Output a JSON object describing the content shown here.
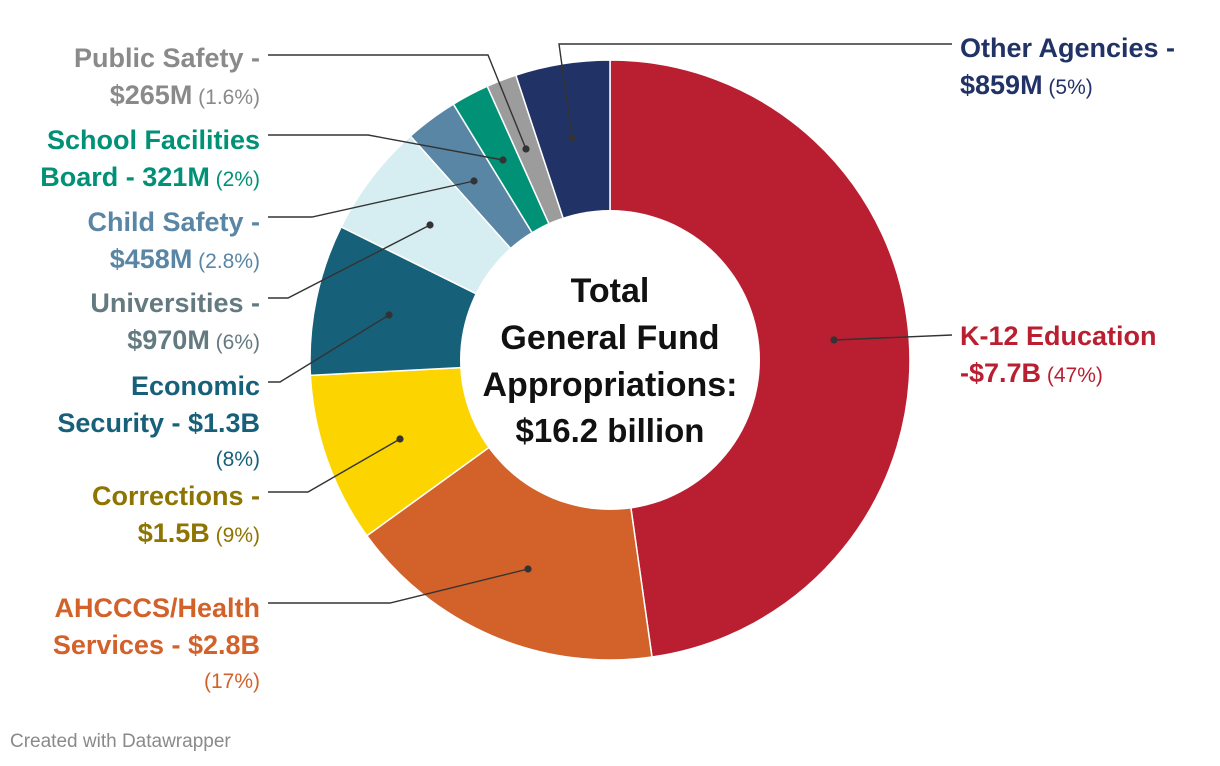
{
  "chart_data": {
    "type": "pie",
    "donut": true,
    "center_text": [
      "Total",
      "General Fund",
      "Appropriations:",
      "$16.2 billion"
    ],
    "slices": [
      {
        "name": "K-12 Education",
        "amount": "-$7.7B",
        "pct_text": "(47%)",
        "value": 47,
        "color": "#b91f31"
      },
      {
        "name": "AHCCCS/Health Services",
        "amount": "$2.8B",
        "pct_text": "(17%)",
        "value": 17,
        "color": "#d2612a"
      },
      {
        "name": "Corrections",
        "amount": "$1.5B",
        "pct_text": "(9%)",
        "value": 9,
        "color": "#fcd500"
      },
      {
        "name": "Economic Security",
        "amount": "$1.3B",
        "pct_text": "(8%)",
        "value": 8,
        "color": "#17607a"
      },
      {
        "name": "Universities",
        "amount": "$970M",
        "pct_text": "(6%)",
        "value": 6,
        "color": "#d6edf1"
      },
      {
        "name": "Child Safety",
        "amount": "$458M",
        "pct_text": "(2.8%)",
        "value": 2.8,
        "color": "#5a86a5"
      },
      {
        "name": "School Facilities Board",
        "amount": "321M",
        "pct_text": "(2%)",
        "value": 2,
        "color": "#019176"
      },
      {
        "name": "Public Safety",
        "amount": "$265M",
        "pct_text": "(1.6%)",
        "value": 1.6,
        "color": "#9c9c9c"
      },
      {
        "name": "Other Agencies",
        "amount": "$859M",
        "pct_text": "(5%)",
        "value": 5,
        "color": "#213266"
      }
    ],
    "label_colors": {
      "K-12 Education": "#b91f31",
      "AHCCCS/Health Services": "#d2612a",
      "Corrections": "#8e7400",
      "Economic Security": "#17607a",
      "Universities": "#637a80",
      "Child Safety": "#5a86a5",
      "School Facilities Board": "#019176",
      "Public Safety": "#8a8a8a",
      "Other Agencies": "#213266"
    },
    "labels": [
      {
        "slice": "K-12 Education",
        "lines": [
          "K-12 Education",
          "-$7.7B"
        ]
      },
      {
        "slice": "AHCCCS/Health Services",
        "lines": [
          "AHCCCS/Health",
          "Services - $2.8B"
        ],
        "pct_own_line": true
      },
      {
        "slice": "Corrections",
        "lines": [
          "Corrections -",
          "$1.5B"
        ]
      },
      {
        "slice": "Economic Security",
        "lines": [
          "Economic",
          "Security - $1.3B"
        ],
        "pct_own_line": true
      },
      {
        "slice": "Universities",
        "lines": [
          "Universities -",
          "$970M"
        ]
      },
      {
        "slice": "Child Safety",
        "lines": [
          "Child Safety -",
          "$458M"
        ]
      },
      {
        "slice": "School Facilities Board",
        "lines": [
          "School Facilities",
          "Board - 321M"
        ]
      },
      {
        "slice": "Public Safety",
        "lines": [
          "Public Safety -",
          "$265M"
        ]
      },
      {
        "slice": "Other Agencies",
        "lines": [
          "Other Agencies -",
          "$859M"
        ]
      }
    ]
  },
  "credit": "Created with Datawrapper"
}
